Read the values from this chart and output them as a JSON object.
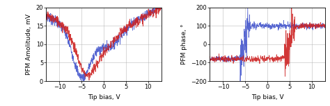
{
  "xlim": [
    -13,
    13
  ],
  "amp_ylim": [
    0,
    20
  ],
  "phase_ylim": [
    -200,
    200
  ],
  "amp_yticks": [
    0,
    5,
    10,
    15,
    20
  ],
  "phase_yticks": [
    -200,
    -100,
    0,
    100,
    200
  ],
  "xticks": [
    -10,
    -5,
    0,
    5,
    10
  ],
  "xlabel": "Tip bias, V",
  "amp_ylabel": "PFM Amolitude, mV",
  "phase_ylabel": "PFM phase, °",
  "blue_color": "#4455cc",
  "red_color": "#cc2222",
  "linewidth": 0.55,
  "noise_amp": 0.7,
  "phase_noise_amp": 8
}
